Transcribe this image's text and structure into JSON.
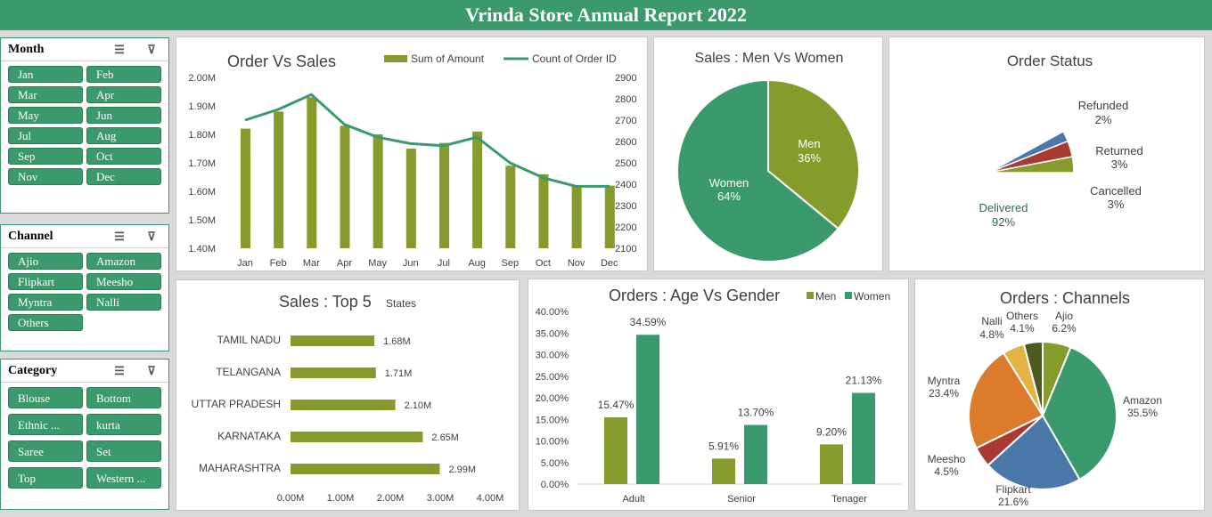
{
  "title": "Vrinda Store Annual Report  2022",
  "slicers": {
    "month": {
      "title": "Month",
      "items": [
        "Jan",
        "Feb",
        "Mar",
        "Apr",
        "May",
        "Jun",
        "Jul",
        "Aug",
        "Sep",
        "Oct",
        "Nov",
        "Dec"
      ]
    },
    "channel": {
      "title": "Channel",
      "items": [
        "Ajio",
        "Amazon",
        "Flipkart",
        "Meesho",
        "Myntra",
        "Nalli",
        "Others"
      ]
    },
    "category": {
      "title": "Category",
      "items": [
        "Blouse",
        "Bottom",
        "Ethnic ...",
        "kurta",
        "Saree",
        "Set",
        "Top",
        "Western ..."
      ]
    }
  },
  "colors": {
    "green": "#3a9a6e",
    "olive": "#859b2c",
    "blue": "#4a78a8",
    "red": "#a83a32",
    "orange": "#dc7b2c",
    "yellow": "#e3b445",
    "darkolive": "#4d5a1f"
  },
  "chart_data": [
    {
      "type": "bar",
      "title": "Order Vs Sales",
      "categories": [
        "Jan",
        "Feb",
        "Mar",
        "Apr",
        "May",
        "Jun",
        "Jul",
        "Aug",
        "Sep",
        "Oct",
        "Nov",
        "Dec"
      ],
      "series": [
        {
          "name": "Sum of Amount",
          "axis": "left",
          "values": [
            1.82,
            1.88,
            1.93,
            1.83,
            1.8,
            1.75,
            1.77,
            1.81,
            1.69,
            1.66,
            1.62,
            1.62
          ]
        },
        {
          "name": "Count of Order ID",
          "axis": "right",
          "type": "line",
          "values": [
            2700,
            2750,
            2820,
            2680,
            2620,
            2590,
            2580,
            2620,
            2500,
            2430,
            2390,
            2390
          ]
        }
      ],
      "yticks_left": [
        "1.40M",
        "1.50M",
        "1.60M",
        "1.70M",
        "1.80M",
        "1.90M",
        "2.00M"
      ],
      "ylim_left": [
        1.4,
        2.0
      ],
      "yticks_right": [
        "2100",
        "2200",
        "2300",
        "2400",
        "2500",
        "2600",
        "2700",
        "2800",
        "2900"
      ],
      "ylim_right": [
        2100,
        2900
      ]
    },
    {
      "type": "pie",
      "title": "Sales : Men Vs Women",
      "slices": [
        {
          "label": "Men",
          "value": 36,
          "pct": "36%",
          "color": "#859b2c"
        },
        {
          "label": "Women",
          "value": 64,
          "pct": "64%",
          "color": "#3a9a6e"
        }
      ]
    },
    {
      "type": "pie",
      "title": "Order Status",
      "slices": [
        {
          "label": "Delivered",
          "value": 92,
          "pct": "92%",
          "color": "#3a9a6e"
        },
        {
          "label": "Refunded",
          "value": 2,
          "pct": "2%",
          "color": "#4a78a8"
        },
        {
          "label": "Returned",
          "value": 3,
          "pct": "3%",
          "color": "#a83a32"
        },
        {
          "label": "Cancelled",
          "value": 3,
          "pct": "3%",
          "color": "#859b2c"
        }
      ]
    },
    {
      "type": "bar",
      "orientation": "horizontal",
      "title": "Sales : Top 5",
      "subtitle": "States",
      "categories": [
        "TAMIL NADU",
        "TELANGANA",
        "UTTAR PRADESH",
        "KARNATAKA",
        "MAHARASHTRA"
      ],
      "values": [
        1.68,
        1.71,
        2.1,
        2.65,
        2.99
      ],
      "data_labels": [
        "1.68M",
        "1.71M",
        "2.10M",
        "2.65M",
        "2.99M"
      ],
      "xticks": [
        "0.00M",
        "1.00M",
        "2.00M",
        "3.00M",
        "4.00M"
      ],
      "xlim": [
        0,
        4
      ]
    },
    {
      "type": "bar",
      "title": "Orders : Age Vs Gender",
      "categories": [
        "Adult",
        "Senior",
        "Tenager"
      ],
      "series": [
        {
          "name": "Men",
          "values": [
            15.47,
            5.91,
            9.2
          ],
          "labels": [
            "15.47%",
            "5.91%",
            "9.20%"
          ]
        },
        {
          "name": "Women",
          "values": [
            34.59,
            13.7,
            21.13
          ],
          "labels": [
            "34.59%",
            "13.70%",
            "21.13%"
          ]
        }
      ],
      "yticks": [
        "0.00%",
        "5.00%",
        "10.00%",
        "15.00%",
        "20.00%",
        "25.00%",
        "30.00%",
        "35.00%",
        "40.00%"
      ],
      "ylim": [
        0,
        40
      ]
    },
    {
      "type": "pie",
      "title": "Orders : Channels",
      "slices": [
        {
          "label": "Ajio",
          "value": 6.2,
          "pct": "6.2%",
          "color": "#859b2c"
        },
        {
          "label": "Amazon",
          "value": 35.5,
          "pct": "35.5%",
          "color": "#3a9a6e"
        },
        {
          "label": "Flipkart",
          "value": 21.6,
          "pct": "21.6%",
          "color": "#4a78a8"
        },
        {
          "label": "Meesho",
          "value": 4.5,
          "pct": "4.5%",
          "color": "#a83a32"
        },
        {
          "label": "Myntra",
          "value": 23.4,
          "pct": "23.4%",
          "color": "#dc7b2c"
        },
        {
          "label": "Nalli",
          "value": 4.8,
          "pct": "4.8%",
          "color": "#e3b445"
        },
        {
          "label": "Others",
          "value": 4.1,
          "pct": "4.1%",
          "color": "#4d5a1f"
        }
      ]
    }
  ]
}
